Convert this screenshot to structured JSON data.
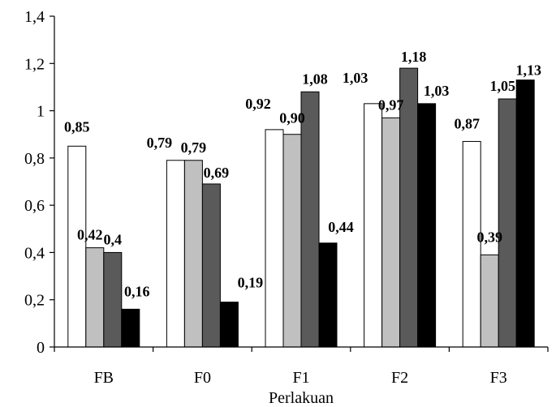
{
  "chart_data": {
    "type": "bar",
    "title": "",
    "xlabel": "Perlakuan",
    "ylabel": "",
    "ylim": [
      0,
      1.4
    ],
    "yticks": [
      0,
      0.2,
      0.4,
      0.6,
      0.8,
      1,
      1.2,
      1.4
    ],
    "ytick_labels": [
      "0",
      "0,2",
      "0,4",
      "0,6",
      "0,8",
      "1",
      "1,2",
      "1,4"
    ],
    "grid": false,
    "legend": "none",
    "categories": [
      "FB",
      "F0",
      "F1",
      "F2",
      "F3"
    ],
    "series": [
      {
        "color": "#ffffff",
        "values": [
          0.85,
          0.79,
          0.92,
          1.03,
          0.87
        ],
        "labels": [
          "0,85",
          "0,79",
          "0,92",
          "1,03",
          "0,87"
        ]
      },
      {
        "color": "#c0c0c0",
        "values": [
          0.42,
          0.79,
          0.9,
          0.97,
          0.39
        ],
        "labels": [
          "0,42",
          "0,79",
          "0,90",
          "0,97",
          "0,39"
        ]
      },
      {
        "color": "#5a5a5a",
        "values": [
          0.4,
          0.69,
          1.08,
          1.18,
          1.05
        ],
        "labels": [
          "0,4",
          "0,69",
          "1,08",
          "1,18",
          "1,05"
        ]
      },
      {
        "color": "#000000",
        "values": [
          0.16,
          0.19,
          0.44,
          1.03,
          1.13
        ],
        "labels": [
          "0,16",
          "0,19",
          "0,44",
          "1,03",
          "1,13"
        ]
      }
    ]
  }
}
